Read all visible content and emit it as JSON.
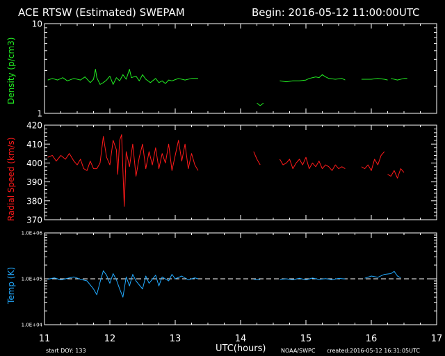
{
  "header": {
    "title": "ACE RTSW (Estimated) SWEPAM",
    "begin": "Begin: 2016-05-12 11:00:00UTC"
  },
  "footer": {
    "start_doy": "start DOY: 133",
    "xlabel": "UTC(hours)",
    "agency": "NOAA/SWPC",
    "created": "created:2016-05-12 16:31:05UTC"
  },
  "x_axis": {
    "range": [
      11,
      17
    ],
    "ticks": [
      "11",
      "12",
      "13",
      "14",
      "15",
      "16",
      "17"
    ]
  },
  "colors": {
    "density": "#22ee22",
    "speed": "#ff1a1a",
    "temp": "#22aaff",
    "axes": "#ffffff",
    "background": "#000000"
  },
  "panels": {
    "density": {
      "ylabel": "Density (p/cm3)",
      "tick_labels": [
        "10",
        "1"
      ]
    },
    "speed": {
      "ylabel": "Radial Speed (km/s)",
      "tick_labels": [
        "420",
        "410",
        "400",
        "390",
        "380",
        "370"
      ]
    },
    "temp": {
      "ylabel": "Temp (K)",
      "tick_labels": [
        "1.0E+06",
        "1.0E+05",
        "1.0E+04"
      ]
    }
  },
  "chart_data": [
    {
      "type": "line",
      "name": "density",
      "ylabel": "Density (p/cm3)",
      "yscale": "log",
      "ylim": [
        1,
        10
      ],
      "xlim": [
        11,
        17
      ],
      "series": [
        {
          "name": "Density (p/cm3)",
          "segments": [
            [
              [
                11.05,
                2.35
              ],
              [
                11.12,
                2.45
              ],
              [
                11.2,
                2.35
              ],
              [
                11.28,
                2.5
              ],
              [
                11.35,
                2.3
              ],
              [
                11.45,
                2.45
              ],
              [
                11.55,
                2.35
              ],
              [
                11.62,
                2.55
              ],
              [
                11.7,
                2.2
              ],
              [
                11.75,
                2.4
              ],
              [
                11.78,
                3.1
              ],
              [
                11.8,
                2.5
              ],
              [
                11.85,
                2.1
              ],
              [
                11.9,
                2.2
              ],
              [
                11.95,
                2.35
              ],
              [
                12.0,
                2.6
              ],
              [
                12.05,
                2.1
              ],
              [
                12.1,
                2.5
              ],
              [
                12.15,
                2.3
              ],
              [
                12.2,
                2.7
              ],
              [
                12.25,
                2.4
              ],
              [
                12.3,
                3.1
              ],
              [
                12.33,
                2.5
              ],
              [
                12.4,
                2.6
              ],
              [
                12.45,
                2.3
              ],
              [
                12.5,
                2.7
              ],
              [
                12.55,
                2.4
              ],
              [
                12.62,
                2.2
              ],
              [
                12.7,
                2.45
              ],
              [
                12.75,
                2.2
              ],
              [
                12.8,
                2.3
              ],
              [
                12.85,
                2.15
              ],
              [
                12.9,
                2.35
              ],
              [
                12.95,
                2.3
              ],
              [
                13.05,
                2.45
              ],
              [
                13.15,
                2.35
              ],
              [
                13.25,
                2.45
              ],
              [
                13.35,
                2.45
              ]
            ],
            [
              [
                14.25,
                1.3
              ],
              [
                14.3,
                1.22
              ],
              [
                14.35,
                1.3
              ]
            ],
            [
              [
                14.6,
                2.3
              ],
              [
                14.7,
                2.25
              ],
              [
                14.8,
                2.3
              ],
              [
                14.9,
                2.3
              ],
              [
                15.0,
                2.35
              ],
              [
                15.05,
                2.45
              ],
              [
                15.15,
                2.55
              ],
              [
                15.2,
                2.5
              ],
              [
                15.25,
                2.7
              ],
              [
                15.3,
                2.55
              ],
              [
                15.35,
                2.45
              ],
              [
                15.45,
                2.4
              ],
              [
                15.55,
                2.45
              ],
              [
                15.6,
                2.35
              ]
            ],
            [
              [
                15.85,
                2.4
              ],
              [
                16.0,
                2.4
              ],
              [
                16.1,
                2.45
              ],
              [
                16.2,
                2.4
              ],
              [
                16.25,
                2.35
              ]
            ],
            [
              [
                16.3,
                2.45
              ],
              [
                16.4,
                2.35
              ],
              [
                16.5,
                2.45
              ],
              [
                16.55,
                2.45
              ]
            ]
          ]
        }
      ]
    },
    {
      "type": "line",
      "name": "speed",
      "ylabel": "Radial Speed (km/s)",
      "ylim": [
        370,
        420
      ],
      "xlim": [
        11,
        17
      ],
      "series": [
        {
          "name": "Radial Speed (km/s)",
          "segments": [
            [
              [
                11.05,
                403
              ],
              [
                11.12,
                404
              ],
              [
                11.18,
                401
              ],
              [
                11.25,
                404
              ],
              [
                11.32,
                402
              ],
              [
                11.38,
                405
              ],
              [
                11.45,
                401
              ],
              [
                11.5,
                399
              ],
              [
                11.55,
                402
              ],
              [
                11.6,
                397
              ],
              [
                11.65,
                396
              ],
              [
                11.7,
                401
              ],
              [
                11.75,
                397
              ],
              [
                11.8,
                397
              ],
              [
                11.85,
                400
              ],
              [
                11.9,
                414
              ],
              [
                11.95,
                403
              ],
              [
                12.0,
                399
              ],
              [
                12.05,
                412
              ],
              [
                12.1,
                407
              ],
              [
                12.12,
                394
              ],
              [
                12.15,
                412
              ],
              [
                12.18,
                415
              ],
              [
                12.22,
                377
              ],
              [
                12.25,
                406
              ],
              [
                12.3,
                398
              ],
              [
                12.35,
                410
              ],
              [
                12.4,
                393
              ],
              [
                12.45,
                403
              ],
              [
                12.5,
                410
              ],
              [
                12.55,
                397
              ],
              [
                12.6,
                406
              ],
              [
                12.65,
                399
              ],
              [
                12.7,
                408
              ],
              [
                12.75,
                397
              ],
              [
                12.8,
                405
              ],
              [
                12.85,
                400
              ],
              [
                12.9,
                410
              ],
              [
                12.95,
                396
              ],
              [
                13.0,
                404
              ],
              [
                13.05,
                412
              ],
              [
                13.1,
                401
              ],
              [
                13.15,
                410
              ],
              [
                13.2,
                397
              ],
              [
                13.25,
                405
              ],
              [
                13.3,
                399
              ],
              [
                13.35,
                396
              ]
            ],
            [
              [
                14.2,
                406
              ],
              [
                14.25,
                402
              ],
              [
                14.3,
                399
              ]
            ],
            [
              [
                14.6,
                402
              ],
              [
                14.65,
                399
              ],
              [
                14.7,
                400
              ],
              [
                14.75,
                402
              ],
              [
                14.8,
                397
              ],
              [
                14.85,
                400
              ],
              [
                14.9,
                402
              ],
              [
                14.95,
                399
              ],
              [
                15.0,
                403
              ],
              [
                15.05,
                397
              ],
              [
                15.1,
                400
              ],
              [
                15.15,
                398
              ],
              [
                15.2,
                401
              ],
              [
                15.25,
                397
              ],
              [
                15.3,
                399
              ],
              [
                15.35,
                398
              ],
              [
                15.4,
                396
              ],
              [
                15.45,
                399
              ],
              [
                15.5,
                397
              ],
              [
                15.55,
                398
              ],
              [
                15.6,
                397
              ]
            ],
            [
              [
                15.85,
                398
              ],
              [
                15.9,
                397
              ],
              [
                15.95,
                399
              ],
              [
                16.0,
                396
              ],
              [
                16.05,
                402
              ],
              [
                16.1,
                399
              ],
              [
                16.15,
                404
              ],
              [
                16.2,
                406
              ]
            ],
            [
              [
                16.25,
                394
              ],
              [
                16.3,
                393
              ],
              [
                16.35,
                396
              ],
              [
                16.4,
                392
              ],
              [
                16.45,
                397
              ],
              [
                16.5,
                395
              ]
            ]
          ]
        }
      ]
    },
    {
      "type": "line",
      "name": "temp",
      "ylabel": "Temp (K)",
      "yscale": "log",
      "ylim": [
        10000,
        1000000
      ],
      "xlim": [
        11,
        17
      ],
      "reference_line": 100000,
      "series": [
        {
          "name": "Temp (K)",
          "segments": [
            [
              [
                11.05,
                98000
              ],
              [
                11.15,
                105000
              ],
              [
                11.25,
                95000
              ],
              [
                11.35,
                102000
              ],
              [
                11.45,
                110000
              ],
              [
                11.55,
                98000
              ],
              [
                11.65,
                90000
              ],
              [
                11.75,
                60000
              ],
              [
                11.8,
                45000
              ],
              [
                11.85,
                85000
              ],
              [
                11.9,
                150000
              ],
              [
                11.95,
                120000
              ],
              [
                12.0,
                80000
              ],
              [
                12.05,
                130000
              ],
              [
                12.1,
                95000
              ],
              [
                12.15,
                60000
              ],
              [
                12.2,
                40000
              ],
              [
                12.25,
                110000
              ],
              [
                12.3,
                70000
              ],
              [
                12.35,
                125000
              ],
              [
                12.4,
                90000
              ],
              [
                12.5,
                60000
              ],
              [
                12.55,
                115000
              ],
              [
                12.6,
                80000
              ],
              [
                12.7,
                120000
              ],
              [
                12.75,
                70000
              ],
              [
                12.8,
                110000
              ],
              [
                12.9,
                90000
              ],
              [
                12.95,
                125000
              ],
              [
                13.0,
                100000
              ],
              [
                13.1,
                115000
              ],
              [
                13.2,
                95000
              ],
              [
                13.3,
                105000
              ],
              [
                13.35,
                100000
              ]
            ],
            [
              [
                14.2,
                98000
              ],
              [
                14.3,
                96000
              ]
            ],
            [
              [
                14.6,
                97000
              ],
              [
                14.7,
                100000
              ],
              [
                14.8,
                96000
              ],
              [
                14.9,
                103000
              ],
              [
                15.0,
                95000
              ],
              [
                15.1,
                104000
              ],
              [
                15.2,
                97000
              ],
              [
                15.3,
                101000
              ],
              [
                15.4,
                96000
              ],
              [
                15.5,
                102000
              ],
              [
                15.6,
                99000
              ]
            ],
            [
              [
                15.9,
                103000
              ],
              [
                16.0,
                115000
              ],
              [
                16.1,
                108000
              ],
              [
                16.2,
                125000
              ],
              [
                16.3,
                130000
              ],
              [
                16.35,
                145000
              ],
              [
                16.4,
                115000
              ],
              [
                16.45,
                105000
              ]
            ]
          ]
        }
      ]
    }
  ]
}
